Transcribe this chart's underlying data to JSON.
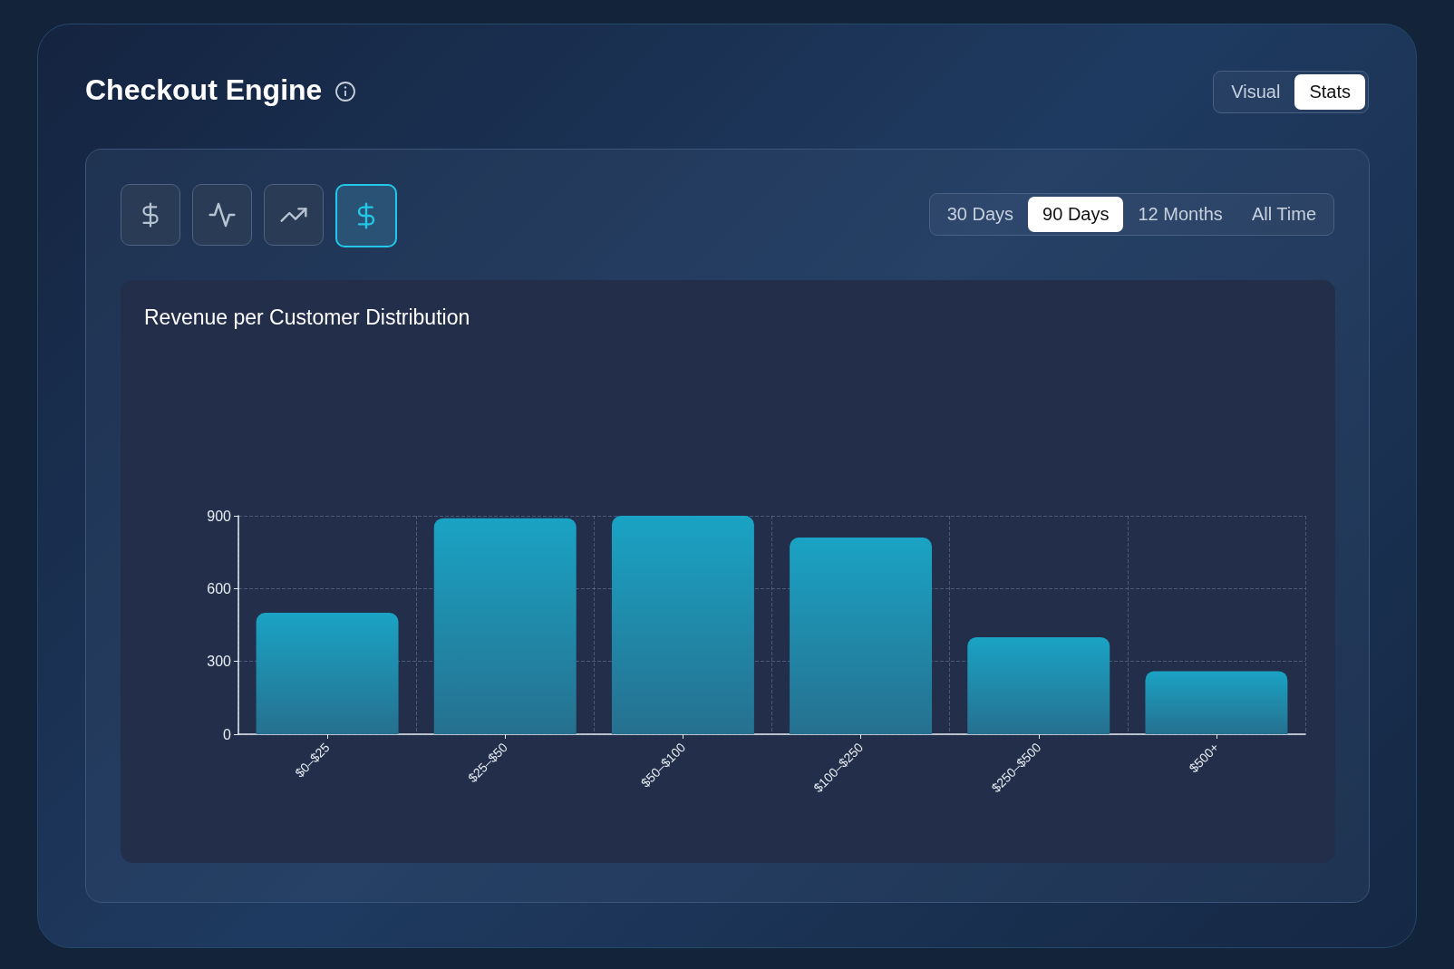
{
  "chart_data": {
    "type": "bar",
    "title": "Checkout Engine",
    "subtitle": "Revenue per Customer Distribution",
    "annotations": [
      "Visual",
      "Stats",
      "30 Days",
      "90 Days",
      "12 Months",
      "All Time"
    ],
    "categories": [
      "$0–$25",
      "$25–$50",
      "$50–$100",
      "$100–$250",
      "$250–$500",
      "$500+"
    ],
    "values": [
      500,
      890,
      900,
      810,
      400,
      260
    ],
    "color": "#1aa3c4",
    "ylim": [
      0,
      900
    ],
    "yticks": [
      0,
      300,
      600,
      900
    ],
    "grid": true
  }
}
